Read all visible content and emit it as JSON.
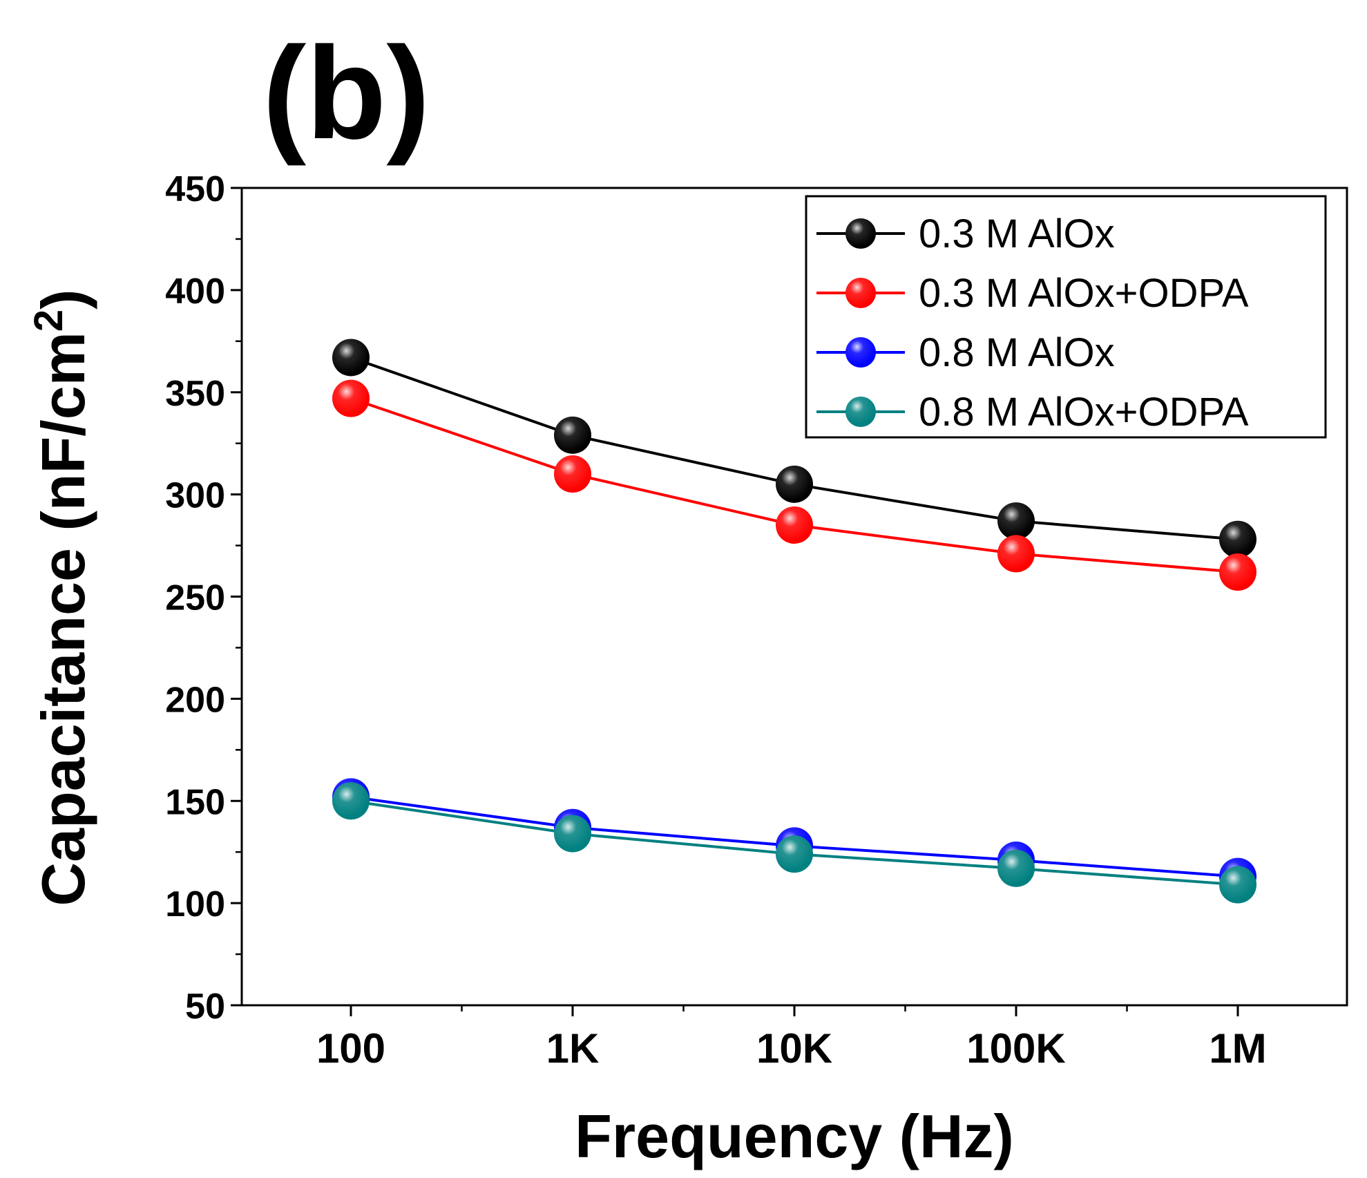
{
  "panel_label": "(b)",
  "chart_data": {
    "type": "line",
    "x_scale": "log",
    "categories": [
      "100",
      "1K",
      "10K",
      "100K",
      "1M"
    ],
    "x": [
      100,
      1000,
      10000,
      100000,
      1000000
    ],
    "xlabel": "Frequency (Hz)",
    "ylabel_main": "Capacitance (nF/cm",
    "ylabel_sup": "2",
    "ylabel_close": ")",
    "ylim": [
      50,
      450
    ],
    "yticks": [
      50,
      100,
      150,
      200,
      250,
      300,
      350,
      400,
      450
    ],
    "grid": false,
    "legend_position": "top-right",
    "series": [
      {
        "name": "0.3 M AlOx",
        "color": "#000000",
        "values": [
          367,
          329,
          305,
          287,
          278
        ]
      },
      {
        "name": "0.3 M AlOx+ODPA",
        "color": "#ff0000",
        "values": [
          347,
          310,
          285,
          271,
          262
        ]
      },
      {
        "name": "0.8 M AlOx",
        "color": "#0000ff",
        "values": [
          152,
          137,
          128,
          121,
          113
        ]
      },
      {
        "name": "0.8 M AlOx+ODPA",
        "color": "#008080",
        "values": [
          150,
          134,
          124,
          117,
          109
        ]
      }
    ]
  }
}
